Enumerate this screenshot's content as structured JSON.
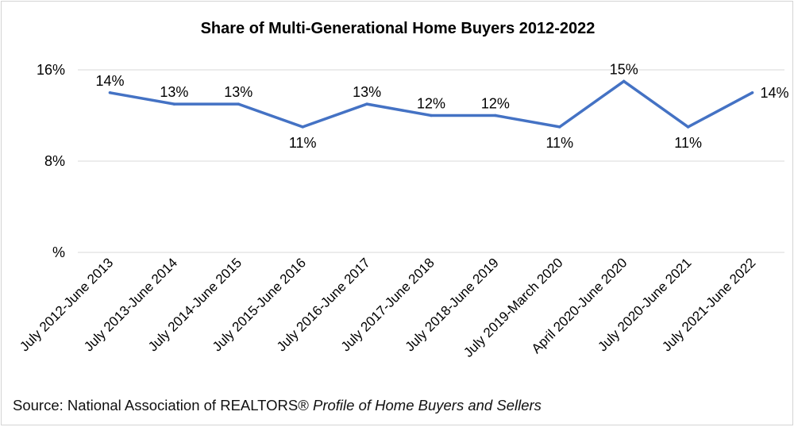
{
  "chart_data": {
    "type": "line",
    "title": "Share of Multi-Generational Home Buyers 2012-2022",
    "categories": [
      "July 2012-June 2013",
      "July 2013-June 2014",
      "July 2014-June 2015",
      "July 2015-June 2016",
      "July 2016-June 2017",
      "July 2017-June 2018",
      "July 2018-June 2019",
      "July 2019-March 2020",
      "April 2020-June 2020",
      "July 2020-June 2021",
      "July 2021-June 2022"
    ],
    "series": [
      {
        "values": [
          14,
          13,
          13,
          11,
          13,
          12,
          12,
          11,
          15,
          11,
          14
        ],
        "labels": [
          "14%",
          "13%",
          "13%",
          "11%",
          "13%",
          "12%",
          "12%",
          "11%",
          "15%",
          "11%",
          "14%"
        ],
        "color": "#4472C4"
      }
    ],
    "ylim": [
      0,
      16
    ],
    "yticks": [
      {
        "value": 16,
        "label": "16%"
      },
      {
        "value": 8,
        "label": "8%"
      },
      {
        "value": 0,
        "label": "%"
      }
    ],
    "grid": true,
    "gridline_color": "#d9d9d9",
    "legend": "none",
    "xlabel": "",
    "ylabel": ""
  },
  "source": {
    "prefix": "Source: National Association of REALTORS®",
    "publication": "Profile of Home Buyers and Sellers"
  }
}
